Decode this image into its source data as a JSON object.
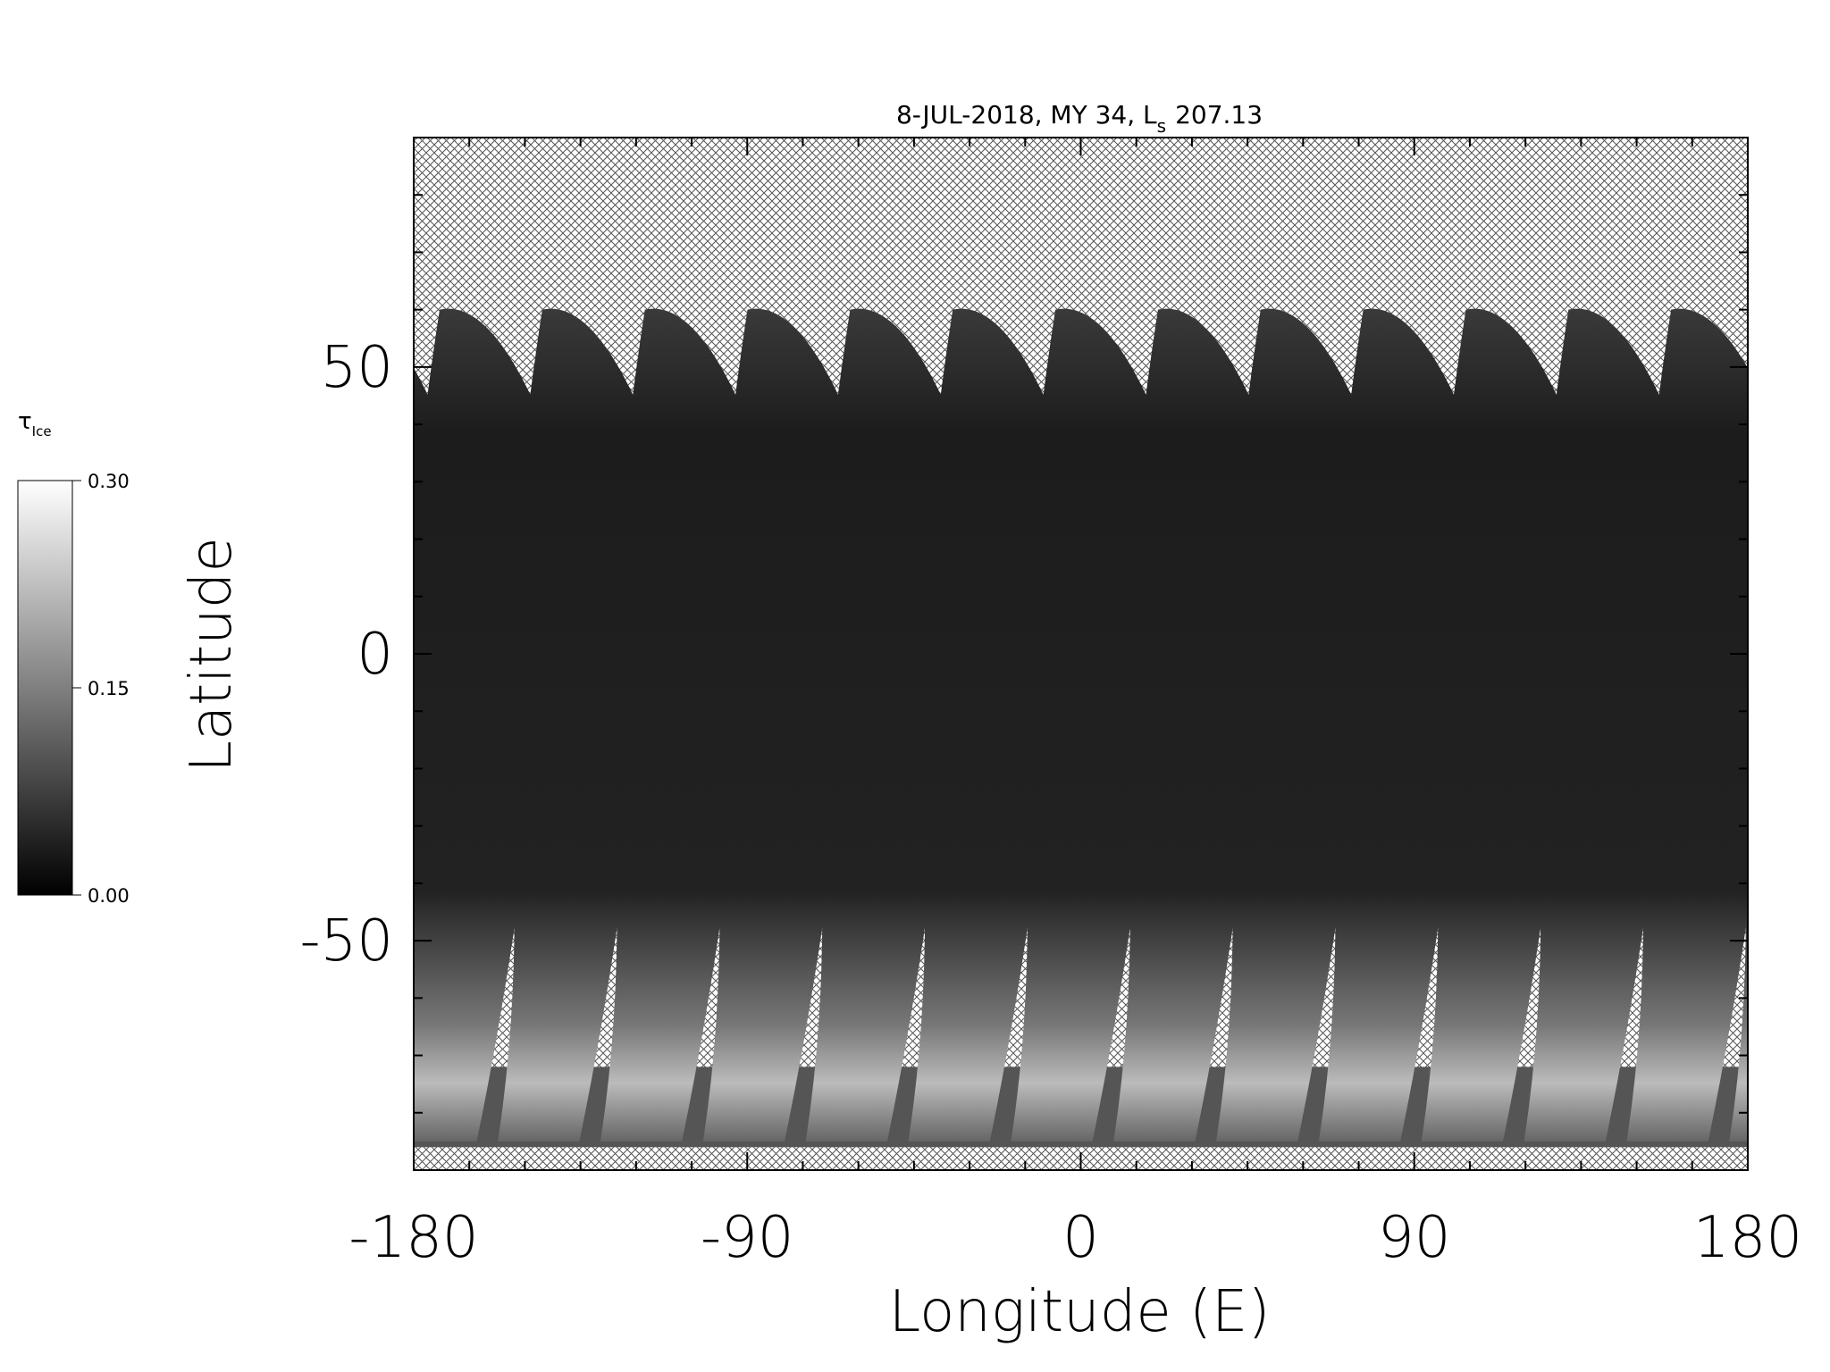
{
  "chart_data": {
    "type": "map",
    "title": {
      "text": "8-JUL-2018, MY 34,  L",
      "subscript": "s",
      "after": "207.13"
    },
    "xlabel": "Longitude (E)",
    "ylabel": "Latitude",
    "xlim": [
      -180,
      180
    ],
    "ylim": [
      -90,
      90
    ],
    "xticks": [
      -180,
      -90,
      0,
      90,
      180
    ],
    "yticks": [
      -50,
      0,
      50
    ],
    "xminorticks": [
      -165,
      -150,
      -135,
      -120,
      -105,
      -75,
      -60,
      -45,
      -30,
      -15,
      15,
      30,
      45,
      60,
      75,
      105,
      120,
      135,
      150,
      165
    ],
    "yminorticks": [
      -80,
      -70,
      -60,
      -40,
      -30,
      -20,
      -10,
      10,
      20,
      30,
      40,
      60,
      70,
      80
    ],
    "colorbar": {
      "label": "τ",
      "label_subscript": "Ice",
      "lim": [
        0,
        0.3
      ],
      "ticks": [
        {
          "value": 0,
          "label": "0.00"
        },
        {
          "value": 0.15,
          "label": "0.15"
        },
        {
          "value": 0.3,
          "label": "0.30"
        }
      ],
      "colors": [
        "#000000",
        "#ffffff"
      ]
    }
  }
}
